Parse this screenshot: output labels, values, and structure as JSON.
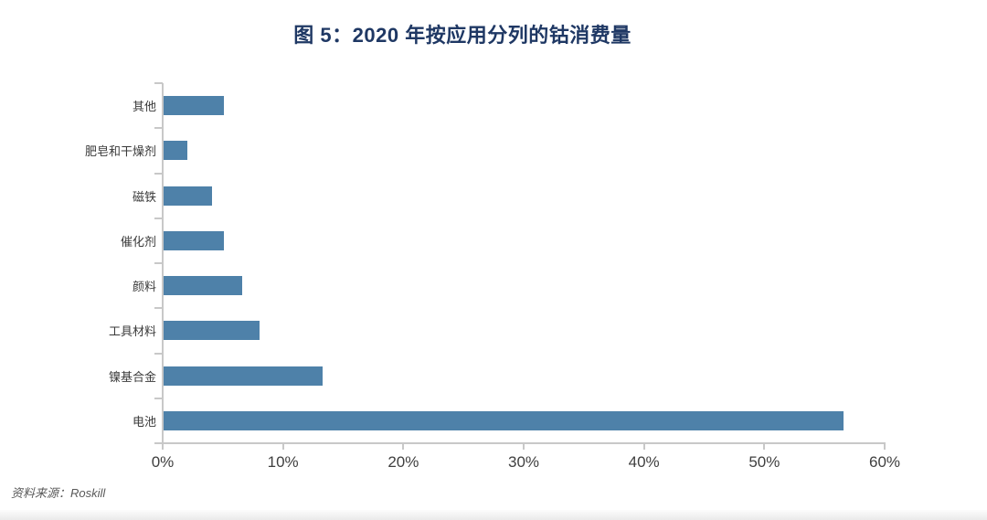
{
  "chart_data": {
    "type": "bar",
    "orientation": "horizontal",
    "title": "图 5：2020 年按应用分列的钴消费量",
    "categories": [
      "其他",
      "肥皂和干燥剂",
      "磁铁",
      "催化剂",
      "颜料",
      "工具材料",
      "镍基合金",
      "电池"
    ],
    "values": [
      5,
      2,
      4,
      5,
      6.5,
      8,
      13.2,
      56.5
    ],
    "unit": "%",
    "xlabel": "",
    "ylabel": "",
    "xlim": [
      0,
      60
    ],
    "x_ticks": [
      "0%",
      "10%",
      "20%",
      "30%",
      "40%",
      "50%",
      "60%"
    ],
    "grid": false,
    "legend": false
  },
  "source_note": "资料来源：Roskill",
  "colors": {
    "bar": "#4E81A9",
    "title": "#1F3864",
    "axis": "#C8C8C8",
    "tick_label": "#3F3F3F",
    "category_label": "#3A3A3A",
    "source": "#595959"
  }
}
